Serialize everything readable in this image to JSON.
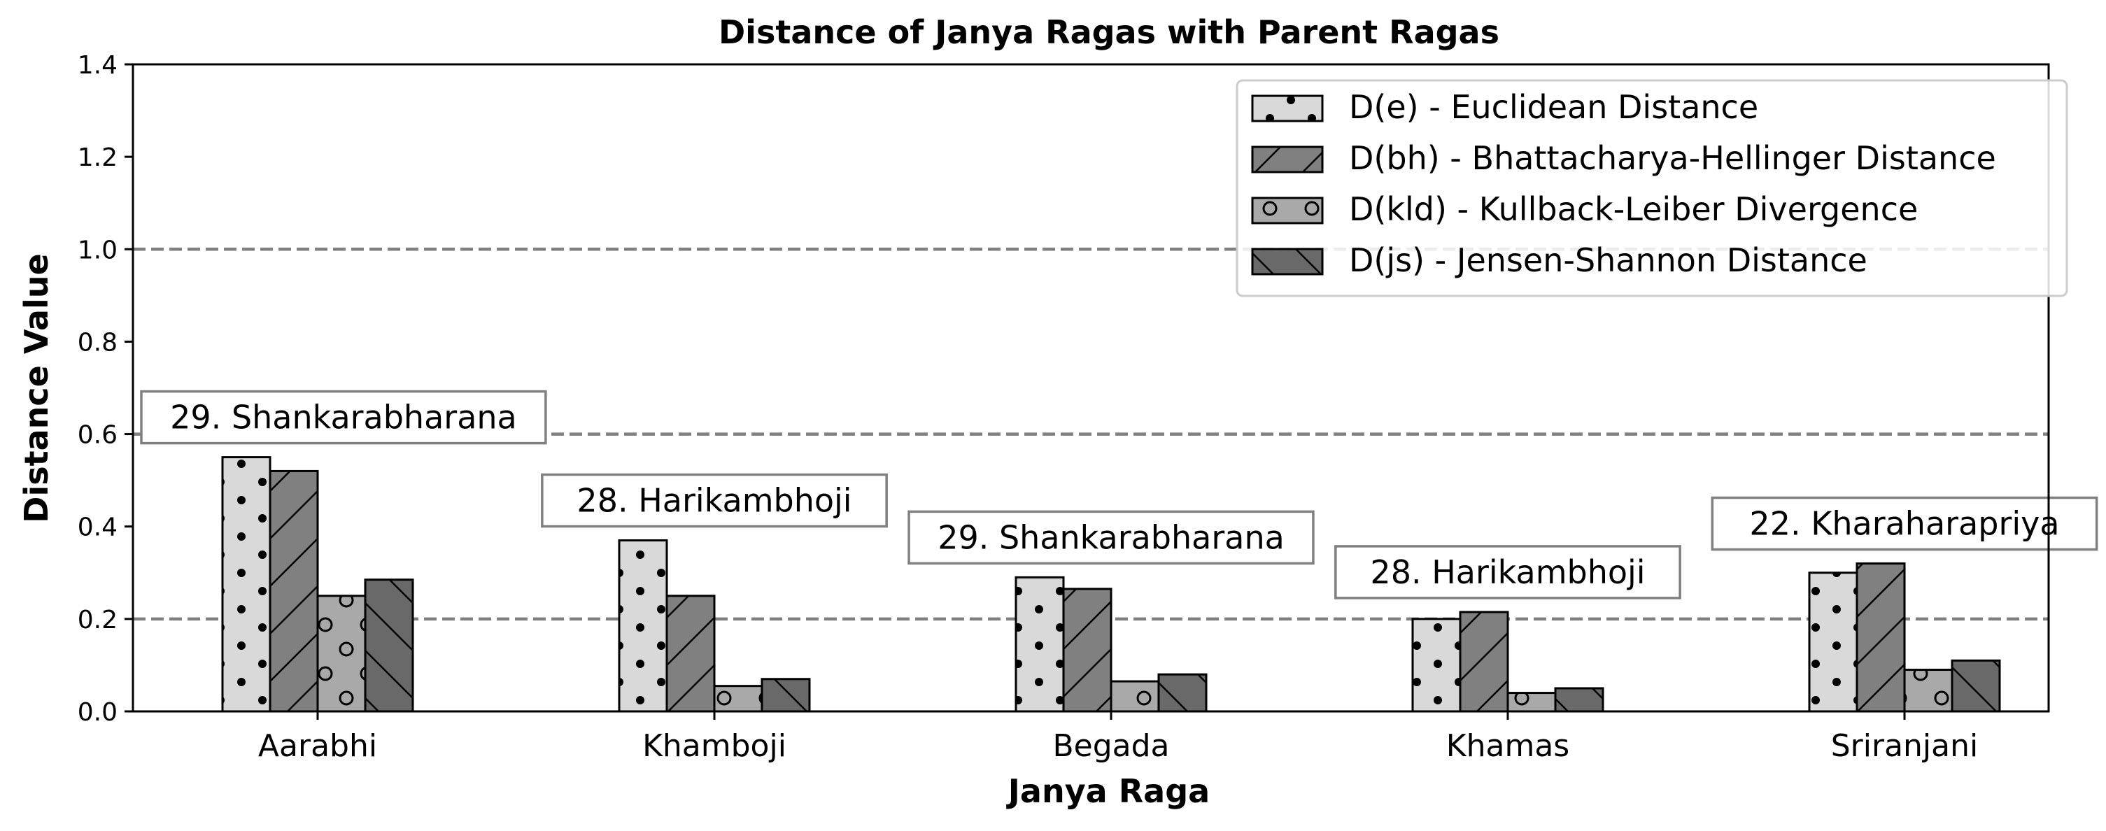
{
  "chart_data": {
    "type": "bar",
    "title": "Distance of Janya Ragas with Parent Ragas",
    "xlabel": "Janya Raga",
    "ylabel": "Distance Value",
    "ylim": [
      0,
      1.4
    ],
    "yticks": [
      "0.0",
      "0.2",
      "0.4",
      "0.6",
      "0.8",
      "1.0",
      "1.2",
      "1.4"
    ],
    "categories": [
      "Aarabhi",
      "Khamboji",
      "Begada",
      "Khamas",
      "Sriranjani"
    ],
    "parent_ragas": [
      "29. Shankarabharana",
      "28. Harikambhoji",
      "29. Shankarabharana",
      "28. Harikambhoji",
      "22. Kharaharapriya"
    ],
    "reference_lines": [
      0.2,
      0.6,
      1.0
    ],
    "legend_position": "top-right",
    "grid": false,
    "series": [
      {
        "name": "D(e) - Euclidean Distance",
        "values": [
          0.55,
          0.37,
          0.29,
          0.2,
          0.3
        ],
        "color": "#d9d9d9",
        "hatch": "dots"
      },
      {
        "name": "D(bh) - Bhattacharya-Hellinger Distance",
        "values": [
          0.52,
          0.25,
          0.265,
          0.215,
          0.32
        ],
        "color": "#808080",
        "hatch": "diagonal"
      },
      {
        "name": "D(kld) - Kullback-Leiber Divergence",
        "values": [
          0.25,
          0.055,
          0.065,
          0.04,
          0.09
        ],
        "color": "#a9a9a9",
        "hatch": "circles"
      },
      {
        "name": "D(js) - Jensen-Shannon Distance",
        "values": [
          0.285,
          0.07,
          0.08,
          0.05,
          0.11
        ],
        "color": "#696969",
        "hatch": "backslash"
      }
    ]
  }
}
